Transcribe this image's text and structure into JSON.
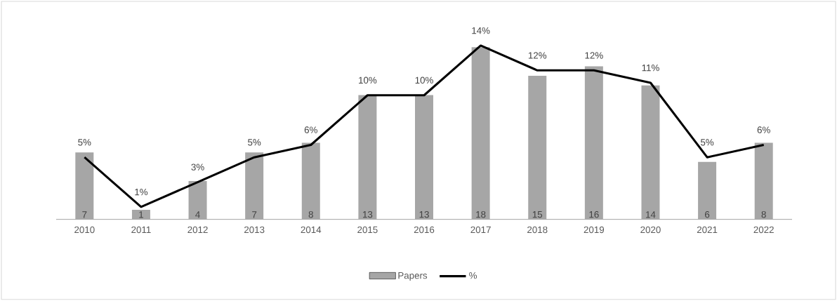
{
  "chart_data": {
    "type": "bar",
    "categories": [
      "2010",
      "2011",
      "2012",
      "2013",
      "2014",
      "2015",
      "2016",
      "2017",
      "2018",
      "2019",
      "2020",
      "2021",
      "2022"
    ],
    "series": [
      {
        "name": "Papers",
        "color": "#a6a6a6",
        "values": [
          7,
          1,
          4,
          7,
          8,
          13,
          13,
          18,
          15,
          16,
          14,
          6,
          8
        ],
        "value_labels": [
          "7",
          "1",
          "4",
          "7",
          "8",
          "13",
          "13",
          "18",
          "15",
          "16",
          "14",
          "6",
          "8"
        ]
      },
      {
        "name": "%",
        "type": "line",
        "axis": "y2",
        "color": "#000000",
        "values": [
          5,
          1,
          3,
          5,
          6,
          10,
          10,
          14,
          12,
          12,
          11,
          5,
          6
        ],
        "value_labels": [
          "5%",
          "1%",
          "3%",
          "5%",
          "6%",
          "10%",
          "10%",
          "14%",
          "12%",
          "12%",
          "11%",
          "5%",
          "6%"
        ]
      }
    ],
    "tick_labels": "x",
    "legend": "bottom"
  }
}
